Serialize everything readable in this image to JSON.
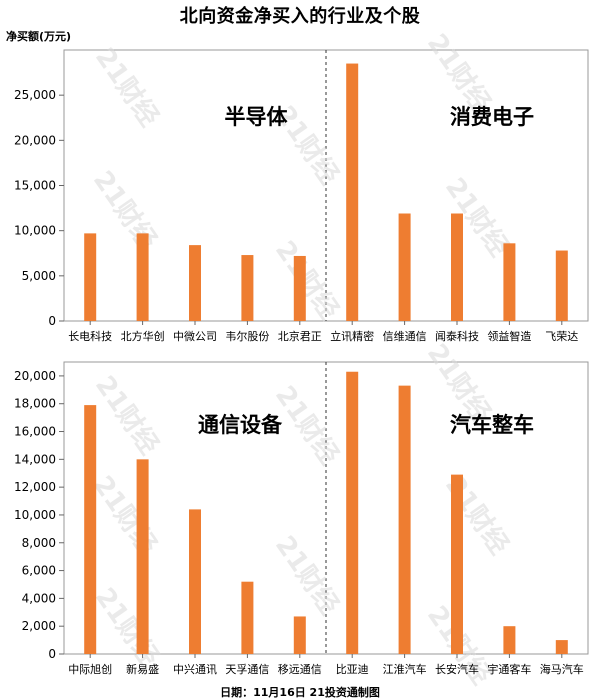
{
  "title": "北向资金净买入的行业及个股",
  "unit_label": "净买额(万元)",
  "footer": "日期：11月16日  21投资通制图",
  "watermark": "21财经",
  "colors": {
    "bar": "#ee7d31",
    "axis": "#999999",
    "grid": "#cccccc"
  },
  "chart_data": [
    {
      "type": "bar",
      "ylabel": "净买额(万元)",
      "ylim": [
        0,
        30000
      ],
      "yticks": [
        0,
        5000,
        10000,
        15000,
        20000,
        25000
      ],
      "ytick_labels": [
        "0",
        "5,000",
        "10,000",
        "15,000",
        "20,000",
        "25,000"
      ],
      "groups": [
        {
          "label": "半导体",
          "categories": [
            "长电科技",
            "北方华创",
            "中微公司",
            "韦尔股份",
            "北京君正"
          ],
          "values": [
            9700,
            9700,
            8400,
            7300,
            7200
          ]
        },
        {
          "label": "消费电子",
          "categories": [
            "立讯精密",
            "信维通信",
            "闻泰科技",
            "领益智造",
            "飞荣达"
          ],
          "values": [
            28500,
            11900,
            11900,
            8600,
            7800
          ]
        }
      ]
    },
    {
      "type": "bar",
      "ylabel": "净买额(万元)",
      "ylim": [
        0,
        21000
      ],
      "yticks": [
        0,
        2000,
        4000,
        6000,
        8000,
        10000,
        12000,
        14000,
        16000,
        18000,
        20000
      ],
      "ytick_labels": [
        "0",
        "2,000",
        "4,000",
        "6,000",
        "8,000",
        "10,000",
        "12,000",
        "14,000",
        "16,000",
        "18,000",
        "20,000"
      ],
      "groups": [
        {
          "label": "通信设备",
          "categories": [
            "中际旭创",
            "新易盛",
            "中兴通讯",
            "天孚通信",
            "移远通信"
          ],
          "values": [
            17900,
            14000,
            10400,
            5200,
            2700
          ]
        },
        {
          "label": "汽车整车",
          "categories": [
            "比亚迪",
            "江淮汽车",
            "长安汽车",
            "宇通客车",
            "海马汽车"
          ],
          "values": [
            20300,
            19300,
            12900,
            2000,
            1000
          ]
        }
      ]
    }
  ]
}
